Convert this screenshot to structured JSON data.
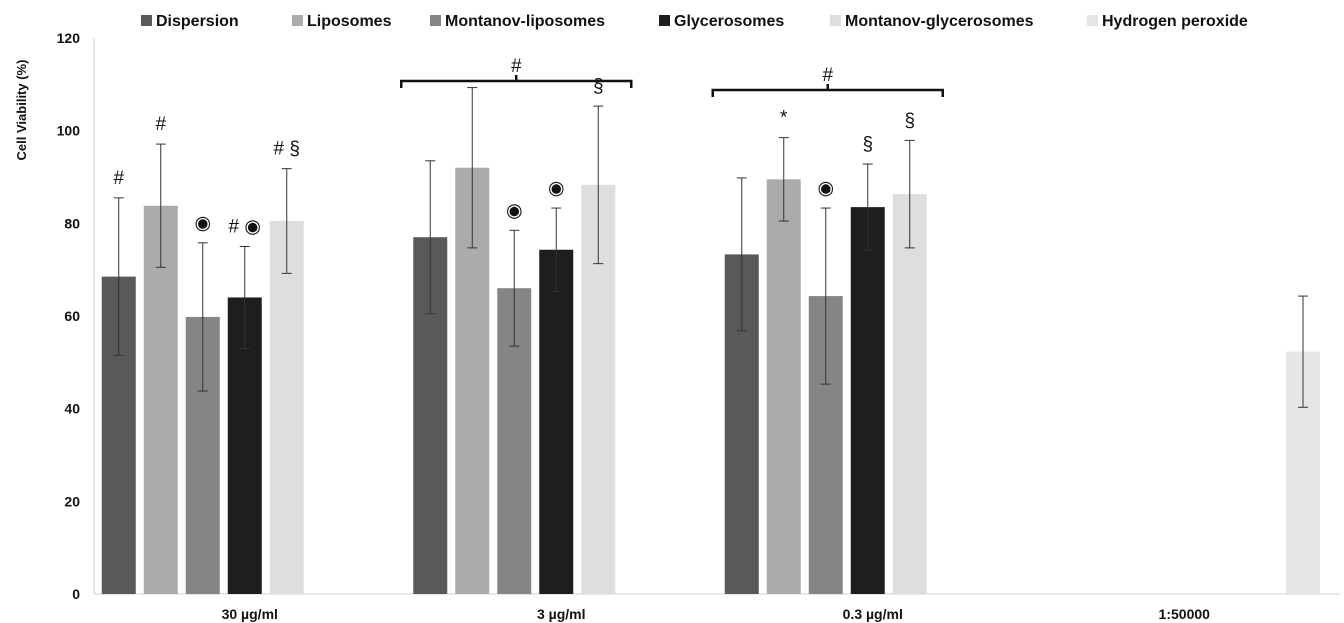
{
  "chart_data": {
    "type": "bar",
    "title": "",
    "xlabel": "",
    "ylabel": "Cell Viability (%)",
    "ylim": [
      0,
      120
    ],
    "yticks": [
      0,
      20,
      40,
      60,
      80,
      100,
      120
    ],
    "grid": false,
    "legend_position": "top",
    "categories": [
      "30 µg/ml",
      "3 µg/ml",
      "0.3 µg/ml",
      "1:50000"
    ],
    "series": [
      {
        "name": "Dispersion",
        "color": "#595959",
        "values": [
          68.5,
          77,
          73.3,
          null
        ],
        "errors": [
          17,
          16.5,
          16.5,
          null
        ],
        "annotations": [
          "#",
          "",
          "",
          ""
        ]
      },
      {
        "name": "Liposomes",
        "color": "#ababab",
        "values": [
          83.8,
          92,
          89.5,
          null
        ],
        "errors": [
          13.3,
          17.3,
          9,
          null
        ],
        "annotations": [
          "#",
          "",
          "*",
          ""
        ]
      },
      {
        "name": "Montanov-liposomes",
        "color": "#858585",
        "values": [
          59.8,
          66,
          64.3,
          null
        ],
        "errors": [
          16,
          12.5,
          19,
          null
        ],
        "annotations": [
          "◉",
          "◉",
          "◉",
          ""
        ]
      },
      {
        "name": "Glycerosomes",
        "color": "#1e1e1e",
        "values": [
          64,
          74.3,
          83.5,
          null
        ],
        "errors": [
          11,
          9,
          9.3,
          null
        ],
        "annotations": [
          "# ◉",
          "◉",
          "§",
          ""
        ]
      },
      {
        "name": "Montanov-glycerosomes",
        "color": "#dedede",
        "values": [
          80.5,
          88.3,
          86.3,
          null
        ],
        "errors": [
          11.3,
          17,
          11.6,
          null
        ],
        "annotations": [
          "# §",
          "§",
          "§",
          ""
        ]
      },
      {
        "name": "Hydrogen peroxide",
        "color": "#e6e6e6",
        "values": [
          null,
          null,
          null,
          52.3
        ],
        "errors": [
          null,
          null,
          null,
          12
        ],
        "annotations": [
          "",
          "",
          "",
          ""
        ]
      }
    ],
    "group_annotations": [
      {
        "group": "3 µg/ml",
        "label": "#"
      },
      {
        "group": "0.3 µg/ml",
        "label": "#"
      }
    ]
  }
}
